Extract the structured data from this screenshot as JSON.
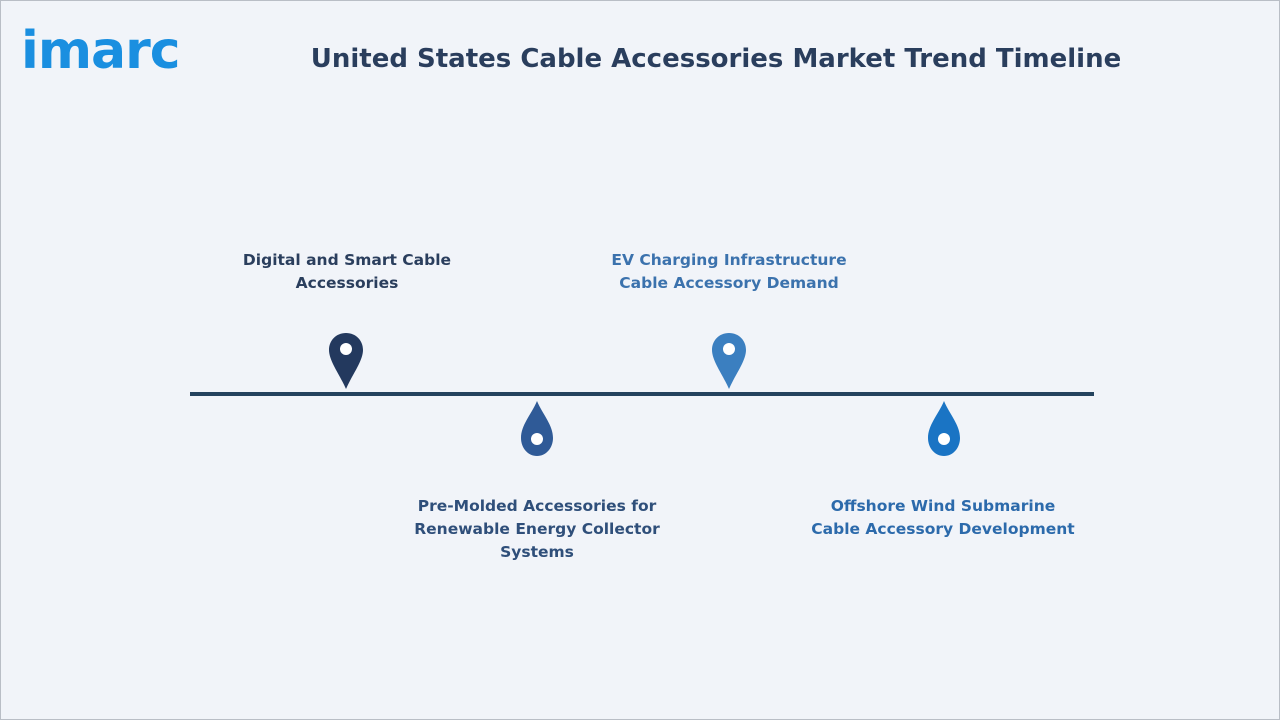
{
  "brand": {
    "logo_text": "imarc",
    "logo_color": "#1a8fe0"
  },
  "header": {
    "title": "United States Cable Accessories Market Trend Timeline"
  },
  "timeline": {
    "line_color": "#24435e",
    "milestones": [
      {
        "label_line1": "Digital and Smart Cable",
        "label_line2": "Accessories",
        "color": "#23395e",
        "text_color": "#2a3e5d",
        "position": "above",
        "icon": "location-pin-icon"
      },
      {
        "label_line1": "Pre-Molded Accessories for",
        "label_line2": "Renewable Energy Collector Systems",
        "color": "#2f5a97",
        "text_color": "#2f4f7a",
        "position": "below",
        "icon": "droplet-pin-icon"
      },
      {
        "label_line1": "EV Charging Infrastructure",
        "label_line2": "Cable Accessory Demand",
        "color": "#3b7fc0",
        "text_color": "#3b72ad",
        "position": "above",
        "icon": "location-pin-icon"
      },
      {
        "label_line1": "Offshore Wind Submarine",
        "label_line2": "Cable Accessory Development",
        "color": "#1a74c4",
        "text_color": "#2c6aab",
        "position": "below",
        "icon": "droplet-pin-icon"
      }
    ]
  }
}
